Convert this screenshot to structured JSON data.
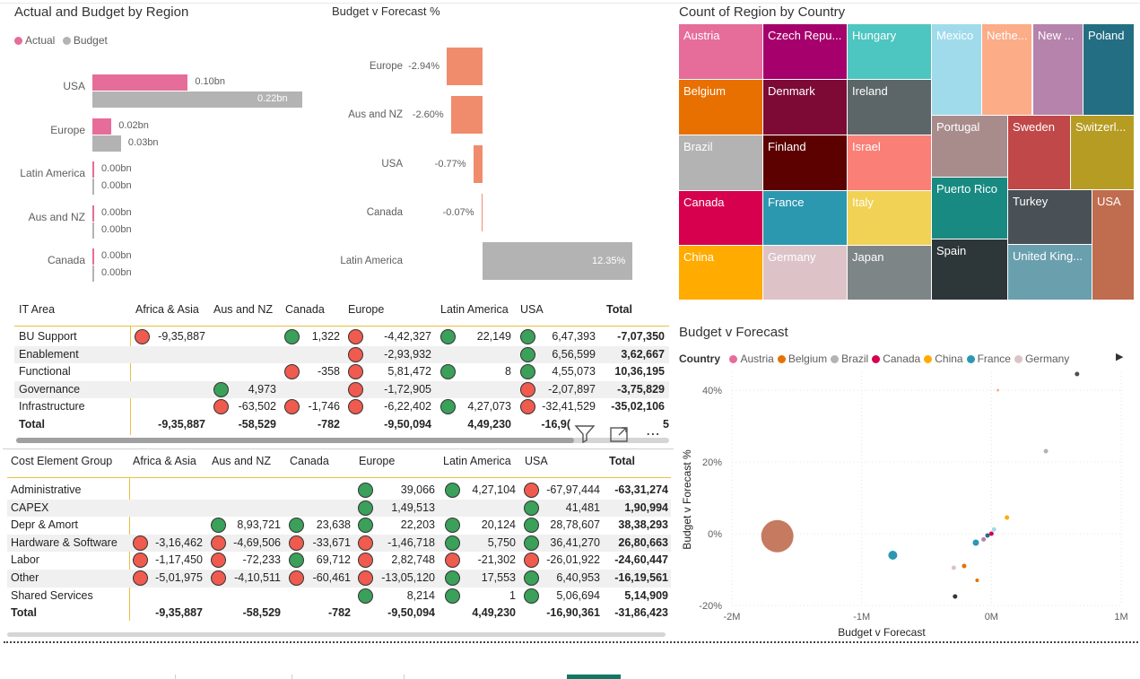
{
  "visual1": {
    "title": "Actual and Budget by Region",
    "legend": [
      {
        "label": "Actual",
        "color": "#e66c9a"
      },
      {
        "label": "Budget",
        "color": "#b3b3b3"
      }
    ],
    "rows": [
      {
        "region": "USA",
        "actual": 0.1,
        "budget": 0.22,
        "actual_label": "0.10bn",
        "budget_label": "0.22bn"
      },
      {
        "region": "Europe",
        "actual": 0.02,
        "budget": 0.03,
        "actual_label": "0.02bn",
        "budget_label": "0.03bn"
      },
      {
        "region": "Latin America",
        "actual": 0.0,
        "budget": 0.0,
        "actual_label": "0.00bn",
        "budget_label": "0.00bn"
      },
      {
        "region": "Aus and NZ",
        "actual": 0.0,
        "budget": 0.0,
        "actual_label": "0.00bn",
        "budget_label": "0.00bn"
      },
      {
        "region": "Canada",
        "actual": 0.0,
        "budget": 0.0,
        "actual_label": "0.00bn",
        "budget_label": "0.00bn"
      }
    ]
  },
  "visual2": {
    "title": "Budget v Forecast %",
    "rows": [
      {
        "region": "Europe",
        "value": -2.94,
        "label": "-2.94%"
      },
      {
        "region": "Aus and NZ",
        "value": -2.6,
        "label": "-2.60%"
      },
      {
        "region": "USA",
        "value": -0.77,
        "label": "-0.77%"
      },
      {
        "region": "Canada",
        "value": -0.07,
        "label": "-0.07%"
      },
      {
        "region": "Latin America",
        "value": 12.35,
        "label": "12.35%"
      }
    ]
  },
  "treemap": {
    "title": "Count of Region by Country",
    "tiles": [
      {
        "label": "Austria",
        "color": "#e66c9a"
      },
      {
        "label": "Czech Repu...",
        "color": "#a5006b"
      },
      {
        "label": "Hungary",
        "color": "#4dc5c0"
      },
      {
        "label": "Mexico",
        "color": "#a0dbec"
      },
      {
        "label": "Nethe...",
        "color": "#fcac87"
      },
      {
        "label": "New ...",
        "color": "#b583ab"
      },
      {
        "label": "Poland",
        "color": "#236e82"
      },
      {
        "label": "Belgium",
        "color": "#e87000"
      },
      {
        "label": "Denmark",
        "color": "#7c0a35"
      },
      {
        "label": "Ireland",
        "color": "#5c6668"
      },
      {
        "label": "Portugal",
        "color": "#a88c8c"
      },
      {
        "label": "Sweden",
        "color": "#c04848"
      },
      {
        "label": "Switzerl...",
        "color": "#b69c22"
      },
      {
        "label": "Brazil",
        "color": "#b3b3b3"
      },
      {
        "label": "Finland",
        "color": "#5c0000"
      },
      {
        "label": "Israel",
        "color": "#fa7f77"
      },
      {
        "label": "Puerto Rico",
        "color": "#188a82"
      },
      {
        "label": "Turkey",
        "color": "#4a5156"
      },
      {
        "label": "USA",
        "color": "#c06c4f"
      },
      {
        "label": "Canada",
        "color": "#d6004f"
      },
      {
        "label": "France",
        "color": "#2b98b0"
      },
      {
        "label": "Italy",
        "color": "#f1d254"
      },
      {
        "label": "Spain",
        "color": "#2d3639"
      },
      {
        "label": "China",
        "color": "#ffab00"
      },
      {
        "label": "Germany",
        "color": "#ddc3c8"
      },
      {
        "label": "Japan",
        "color": "#7e8587"
      },
      {
        "label": "United King...",
        "color": "#6a9fae"
      }
    ]
  },
  "matrix1": {
    "headers": [
      "IT Area",
      "Africa & Asia",
      "Aus and NZ",
      "Canada",
      "Europe",
      "Latin America",
      "USA",
      "Total"
    ],
    "rows": [
      {
        "label": "BU Support",
        "cells": [
          {
            "v": "-9,35,887",
            "i": "r"
          },
          {
            "v": "",
            "i": ""
          },
          {
            "v": "1,322",
            "i": "g"
          },
          {
            "v": "-4,42,327",
            "i": "r"
          },
          {
            "v": "22,149",
            "i": "g"
          },
          {
            "v": "6,47,393",
            "i": "g"
          }
        ],
        "total": "-7,07,350"
      },
      {
        "label": "Enablement",
        "cells": [
          {
            "v": "",
            "i": ""
          },
          {
            "v": "",
            "i": ""
          },
          {
            "v": "",
            "i": ""
          },
          {
            "v": "-2,93,932",
            "i": "r"
          },
          {
            "v": "",
            "i": ""
          },
          {
            "v": "6,56,599",
            "i": "g"
          }
        ],
        "total": "3,62,667"
      },
      {
        "label": "Functional",
        "cells": [
          {
            "v": "",
            "i": ""
          },
          {
            "v": "",
            "i": ""
          },
          {
            "v": "-358",
            "i": "r"
          },
          {
            "v": "5,81,472",
            "i": "r"
          },
          {
            "v": "8",
            "i": "g"
          },
          {
            "v": "4,55,073",
            "i": "g"
          }
        ],
        "total": "10,36,195"
      },
      {
        "label": "Governance",
        "cells": [
          {
            "v": "",
            "i": ""
          },
          {
            "v": "4,973",
            "i": "g"
          },
          {
            "v": "",
            "i": ""
          },
          {
            "v": "-1,72,905",
            "i": "r"
          },
          {
            "v": "",
            "i": ""
          },
          {
            "v": "-2,07,897",
            "i": "r"
          }
        ],
        "total": "-3,75,829"
      },
      {
        "label": "Infrastructure",
        "cells": [
          {
            "v": "",
            "i": ""
          },
          {
            "v": "-63,502",
            "i": "r"
          },
          {
            "v": "-1,746",
            "i": "r"
          },
          {
            "v": "-6,22,402",
            "i": "r"
          },
          {
            "v": "4,27,073",
            "i": "g"
          },
          {
            "v": "-32,41,529",
            "i": "r"
          }
        ],
        "total": "-35,02,106"
      }
    ],
    "totals_label": "Total",
    "totals": [
      "-9,35,887",
      "-58,529",
      "-782",
      "-9,50,094",
      "4,49,230",
      "-16,9(",
      "5"
    ]
  },
  "matrix2": {
    "headers": [
      "Cost Element Group",
      "Africa & Asia",
      "Aus and NZ",
      "Canada",
      "Europe",
      "Latin America",
      "USA",
      "Total"
    ],
    "rows": [
      {
        "label": "Administrative",
        "cells": [
          {
            "v": "",
            "i": ""
          },
          {
            "v": "",
            "i": ""
          },
          {
            "v": "",
            "i": ""
          },
          {
            "v": "39,066",
            "i": "g"
          },
          {
            "v": "4,27,104",
            "i": "g"
          },
          {
            "v": "-67,97,444",
            "i": "r"
          }
        ],
        "total": "-63,31,274"
      },
      {
        "label": "CAPEX",
        "cells": [
          {
            "v": "",
            "i": ""
          },
          {
            "v": "",
            "i": ""
          },
          {
            "v": "",
            "i": ""
          },
          {
            "v": "1,49,513",
            "i": "g"
          },
          {
            "v": "",
            "i": ""
          },
          {
            "v": "41,481",
            "i": "g"
          }
        ],
        "total": "1,90,994"
      },
      {
        "label": "Depr & Amort",
        "cells": [
          {
            "v": "",
            "i": ""
          },
          {
            "v": "8,93,721",
            "i": "g"
          },
          {
            "v": "23,638",
            "i": "g"
          },
          {
            "v": "22,203",
            "i": "g"
          },
          {
            "v": "20,124",
            "i": "g"
          },
          {
            "v": "28,78,607",
            "i": "g"
          }
        ],
        "total": "38,38,293"
      },
      {
        "label": "Hardware & Software",
        "cells": [
          {
            "v": "-3,16,462",
            "i": "r"
          },
          {
            "v": "-4,69,506",
            "i": "r"
          },
          {
            "v": "-33,671",
            "i": "r"
          },
          {
            "v": "-1,46,718",
            "i": "r"
          },
          {
            "v": "5,750",
            "i": "g"
          },
          {
            "v": "36,41,270",
            "i": "g"
          }
        ],
        "total": "26,80,663"
      },
      {
        "label": "Labor",
        "cells": [
          {
            "v": "-1,17,450",
            "i": "r"
          },
          {
            "v": "-72,233",
            "i": "r"
          },
          {
            "v": "69,712",
            "i": "g"
          },
          {
            "v": "2,82,748",
            "i": "r"
          },
          {
            "v": "-21,302",
            "i": "r"
          },
          {
            "v": "-26,01,922",
            "i": "r"
          }
        ],
        "total": "-24,60,447"
      },
      {
        "label": "Other",
        "cells": [
          {
            "v": "-5,01,975",
            "i": "r"
          },
          {
            "v": "-4,10,511",
            "i": "r"
          },
          {
            "v": "-60,461",
            "i": "r"
          },
          {
            "v": "-13,05,120",
            "i": "r"
          },
          {
            "v": "17,553",
            "i": "g"
          },
          {
            "v": "6,40,953",
            "i": "g"
          }
        ],
        "total": "-16,19,561"
      },
      {
        "label": "Shared Services",
        "cells": [
          {
            "v": "",
            "i": ""
          },
          {
            "v": "",
            "i": ""
          },
          {
            "v": "",
            "i": ""
          },
          {
            "v": "8,214",
            "i": "g"
          },
          {
            "v": "1",
            "i": "g"
          },
          {
            "v": "5,06,694",
            "i": "g"
          }
        ],
        "total": "5,14,909"
      }
    ],
    "totals_label": "Total",
    "totals": [
      "-9,35,887",
      "-58,529",
      "-782",
      "-9,50,094",
      "4,49,230",
      "-16,90,361",
      "-31,86,423"
    ]
  },
  "chart_data": {
    "type": "scatter",
    "title": "Budget v Forecast",
    "xlabel": "Budget v Forecast",
    "ylabel": "Budget v Forecast %",
    "legend_title": "Country",
    "legend": [
      {
        "name": "Austria",
        "color": "#e66c9a"
      },
      {
        "name": "Belgium",
        "color": "#e87000"
      },
      {
        "name": "Brazil",
        "color": "#b3b3b3"
      },
      {
        "name": "Canada",
        "color": "#d6004f"
      },
      {
        "name": "China",
        "color": "#ffab00"
      },
      {
        "name": "France",
        "color": "#2b98b0"
      },
      {
        "name": "Germany",
        "color": "#ddc3c8"
      }
    ],
    "x_ticks": [
      "-2M",
      "-1M",
      "0M",
      "1M"
    ],
    "x_tick_values": [
      -2000000,
      -1000000,
      0,
      1000000
    ],
    "y_ticks": [
      "40%",
      "20%",
      "0%",
      "-20%"
    ],
    "y_tick_values": [
      40,
      20,
      0,
      -20
    ],
    "xlim": [
      -2000000,
      1000000
    ],
    "ylim": [
      -20,
      45
    ],
    "points": [
      {
        "x": -1650000,
        "y": -0.7,
        "r": 18,
        "color": "#c06c4f"
      },
      {
        "x": -760000,
        "y": -6,
        "r": 5,
        "color": "#2b98b0"
      },
      {
        "x": -280000,
        "y": -17.5,
        "r": 2.5,
        "color": "#2d3639"
      },
      {
        "x": -290000,
        "y": -9.5,
        "r": 2.5,
        "color": "#ddc3c8"
      },
      {
        "x": -210000,
        "y": -9,
        "r": 2.5,
        "color": "#e87000"
      },
      {
        "x": -120000,
        "y": -2.5,
        "r": 3.5,
        "color": "#2b98b0"
      },
      {
        "x": -60000,
        "y": -1.6,
        "r": 2.5,
        "color": "#b583ab"
      },
      {
        "x": -30000,
        "y": -0.5,
        "r": 2.5,
        "color": "#236e82"
      },
      {
        "x": 0,
        "y": 0,
        "r": 2.5,
        "color": "#d6004f"
      },
      {
        "x": 20000,
        "y": 1.2,
        "r": 2.5,
        "color": "#a0dbec"
      },
      {
        "x": -110000,
        "y": -13,
        "r": 2,
        "color": "#e87000"
      },
      {
        "x": 120000,
        "y": 4.5,
        "r": 2.5,
        "color": "#ffab00"
      },
      {
        "x": 420000,
        "y": 23,
        "r": 2.5,
        "color": "#b3b3b3"
      },
      {
        "x": 660000,
        "y": 44.5,
        "r": 2.5,
        "color": "#4a5156"
      },
      {
        "x": 50000,
        "y": 40,
        "r": 1.5,
        "color": "#fcac87"
      }
    ]
  }
}
